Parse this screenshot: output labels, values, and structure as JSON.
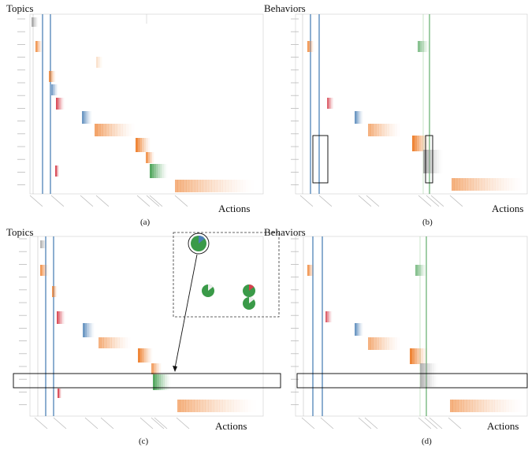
{
  "panels": [
    {
      "id": "a",
      "title": "Topics",
      "axis_label": "Actions",
      "caption": "(a)"
    },
    {
      "id": "b",
      "title": "Behaviors",
      "axis_label": "Actions",
      "caption": "(b)"
    },
    {
      "id": "c",
      "title": "Topics",
      "axis_label": "Actions",
      "caption": "(c)"
    },
    {
      "id": "d",
      "title": "Behaviors",
      "axis_label": "Actions",
      "caption": "(d)"
    }
  ],
  "colors": {
    "blue": "#4a7fb5",
    "light_blue": "#a9c6e4",
    "orange": "#ee7f2d",
    "light_orange": "#f6b98a",
    "red": "#d6404e",
    "green": "#3a9a48",
    "light_green": "#9fd19a",
    "grey": "#9a9a9a",
    "frame": "#cccccc",
    "highlight": "#000000"
  }
}
